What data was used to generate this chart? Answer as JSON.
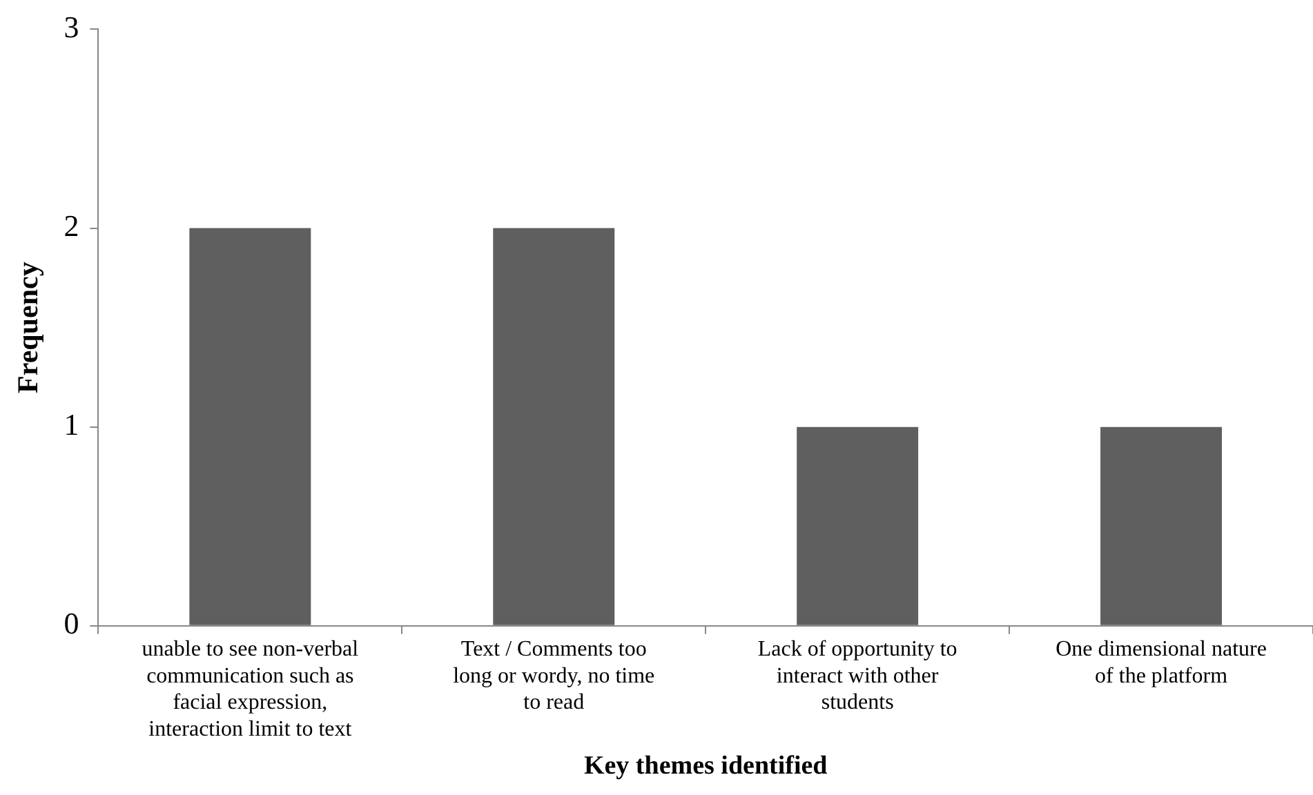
{
  "chart_data": {
    "type": "bar",
    "xlabel": "Key themes identified",
    "ylabel": "Frequency",
    "categories": [
      "unable to see non-verbal communication such as facial expression, interaction limit to text",
      "Text / Comments too long or wordy, no time to read",
      "Lack of opportunity to interact with other students",
      "One dimensional nature of the platform"
    ],
    "values": [
      2,
      2,
      1,
      1
    ],
    "color": "#5f5f5f",
    "ylim": [
      0,
      3
    ],
    "yticks": [
      0,
      1,
      2,
      3
    ],
    "grid": false,
    "legend": false
  }
}
